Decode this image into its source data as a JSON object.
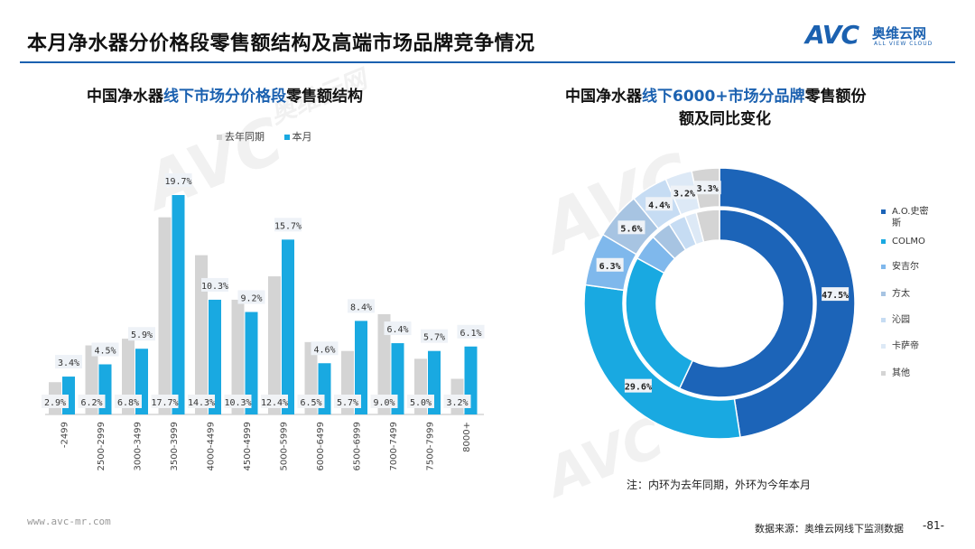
{
  "header": {
    "title": "本月净水器分价格段零售额结构及高端市场品牌竞争情况",
    "logo_mark": "AVC",
    "logo_cn": "奥维云网",
    "logo_en": "ALL VIEW CLOUD"
  },
  "watermark": {
    "mark": "AVC",
    "cn": "奥维云网",
    "en": "ALL VIEW CLOUD"
  },
  "left_chart_title": {
    "prefix": "中国净水器",
    "highlight": "线下市场分价格段",
    "suffix": "零售额结构"
  },
  "right_chart_title": {
    "prefix": "中国净水器",
    "highlight": "线下6000+市场分品牌",
    "suffix": "零售额份",
    "line2": "额及同比变化"
  },
  "colors": {
    "last_year": "#d4d4d4",
    "this_month": "#19a9e1",
    "brand": "#1b61b0",
    "rule": "#1b61b0"
  },
  "chart_data": [
    {
      "type": "bar",
      "legend": [
        "去年同期",
        "本月"
      ],
      "categories": [
        "-2499",
        "2500-2999",
        "3000-3499",
        "3500-3999",
        "4000-4499",
        "4500-4999",
        "5000-5999",
        "6000-6499",
        "6500-6999",
        "7000-7499",
        "7500-7999",
        "8000+"
      ],
      "series": [
        {
          "name": "去年同期",
          "color": "#d4d4d4",
          "values": [
            2.9,
            6.2,
            6.8,
            17.7,
            14.3,
            10.3,
            12.4,
            6.5,
            5.7,
            9.0,
            5.0,
            3.2
          ]
        },
        {
          "name": "本月",
          "color": "#19a9e1",
          "values": [
            3.4,
            4.5,
            5.9,
            19.7,
            10.3,
            9.2,
            15.7,
            4.6,
            8.4,
            6.4,
            5.7,
            6.1
          ]
        }
      ],
      "unit": "%",
      "ylim": [
        0,
        20
      ]
    },
    {
      "type": "pie",
      "variant": "double-donut",
      "outer_ring": "本月",
      "inner_ring": "去年同期",
      "categories": [
        "A.O.史密斯",
        "COLMO",
        "安吉尔",
        "方太",
        "沁园",
        "卡萨帝",
        "其他"
      ],
      "colors": [
        "#1c64b8",
        "#19a9e1",
        "#7fb8ec",
        "#a7c4e2",
        "#c6dcf3",
        "#dde9f6",
        "#d4d4d4"
      ],
      "outer_values": [
        47.5,
        29.6,
        6.3,
        5.6,
        4.4,
        3.2,
        3.3
      ],
      "inner_values": [
        57.0,
        26.0,
        4.5,
        3.5,
        3.0,
        2.0,
        4.0
      ],
      "labels_shown": [
        "47.5%",
        "29.6%",
        "6.3%",
        "5.6%",
        "4.4%",
        "3.2%",
        "3.3%"
      ]
    }
  ],
  "donut_legend": [
    {
      "label": "A.O.史密斯",
      "color": "#1c64b8"
    },
    {
      "label": "COLMO",
      "color": "#19a9e1"
    },
    {
      "label": "安吉尔",
      "color": "#7fb8ec"
    },
    {
      "label": "方太",
      "color": "#a7c4e2"
    },
    {
      "label": "沁园",
      "color": "#c6dcf3"
    },
    {
      "label": "卡萨帝",
      "color": "#dde9f6"
    },
    {
      "label": "其他",
      "color": "#d4d4d4"
    }
  ],
  "note": "注：内环为去年同期，外环为今年本月",
  "footer": {
    "url": "www.avc-mr.com",
    "source": "数据来源：奥维云网线下监测数据",
    "page": "-81-"
  }
}
